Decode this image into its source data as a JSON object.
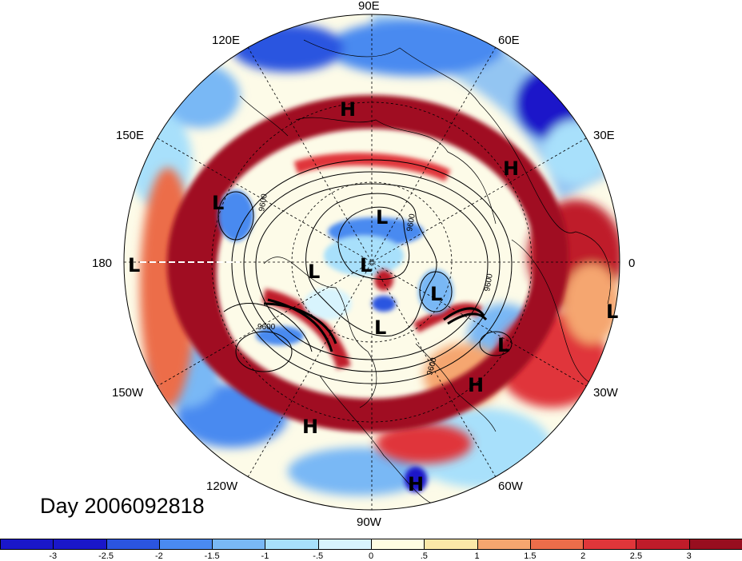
{
  "title": "Day 2006092818",
  "longitude_labels": {
    "lon_90E": "90E",
    "lon_60E": "60E",
    "lon_30E": "30E",
    "lon_0": "0",
    "lon_30W": "30W",
    "lon_60W": "60W",
    "lon_90W": "90W",
    "lon_120W": "120W",
    "lon_150W": "150W",
    "lon_180": "180",
    "lon_150E": "150E",
    "lon_120E": "120E"
  },
  "pressure_centers": [
    {
      "type": "H",
      "id": "h-1"
    },
    {
      "type": "H",
      "id": "h-2"
    },
    {
      "type": "H",
      "id": "h-3"
    },
    {
      "type": "H",
      "id": "h-4"
    },
    {
      "type": "H",
      "id": "h-5"
    },
    {
      "type": "L",
      "id": "l-1"
    },
    {
      "type": "L",
      "id": "l-2"
    },
    {
      "type": "L",
      "id": "l-3"
    },
    {
      "type": "L",
      "id": "l-4"
    },
    {
      "type": "L",
      "id": "l-5"
    },
    {
      "type": "L",
      "id": "l-6"
    },
    {
      "type": "L",
      "id": "l-7"
    },
    {
      "type": "L",
      "id": "l-8"
    },
    {
      "type": "L",
      "id": "l-9"
    }
  ],
  "contour_labels": [
    "9600",
    "9600",
    "9600",
    "9600",
    "9600"
  ],
  "colorbar": {
    "ticks": [
      "-3",
      "-2.5",
      "-2",
      "-1.5",
      "-1",
      "-.5",
      "0",
      ".5",
      "1",
      "1.5",
      "2",
      "2.5",
      "3"
    ],
    "colors": [
      "#1a17c9",
      "#2b55e0",
      "#4a8af0",
      "#79b8f5",
      "#a8e0fb",
      "#d8f4fd",
      "#fffde2",
      "#fbe8a8",
      "#f5a66f",
      "#ec6d4a",
      "#e0363a",
      "#bf1c2a",
      "#980e1f"
    ]
  },
  "colors": {
    "strong_pos": "#a01020",
    "pos": "#e0363a",
    "weak_pos": "#f5a66f",
    "neutral": "#fdfbe8",
    "weak_neg": "#a8e0fb",
    "neg": "#4a8af0",
    "strong_neg": "#1a17c9"
  }
}
